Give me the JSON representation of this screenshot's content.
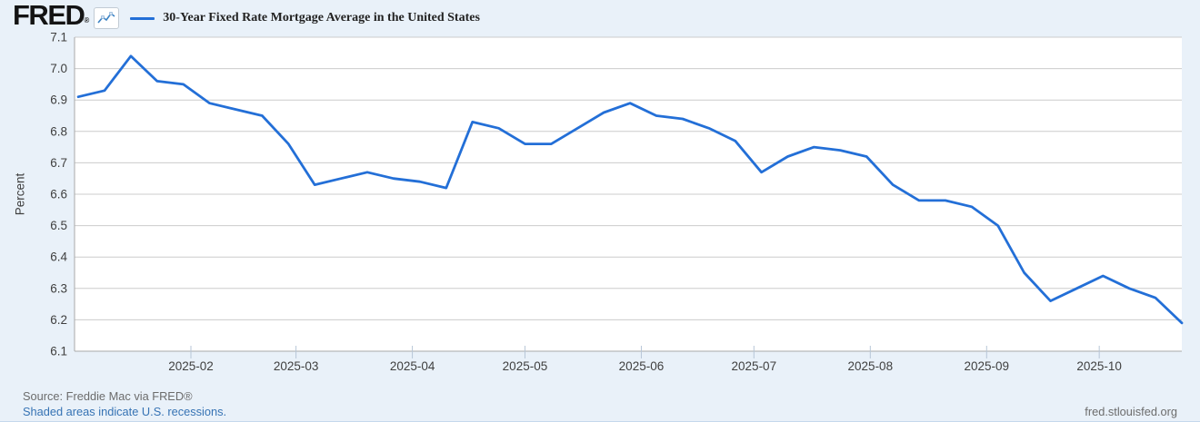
{
  "header": {
    "logo_text": "FRED",
    "registered_mark": "®",
    "legend_label": "30-Year Fixed Rate Mortgage Average in the United States"
  },
  "y_axis": {
    "title": "Percent"
  },
  "footer": {
    "source": "Source: Freddie Mac via FRED®",
    "recession_note": "Shaded areas indicate U.S. recessions.",
    "site": "fred.stlouisfed.org"
  },
  "colors": {
    "line": "#236FD7",
    "background": "#e9f1f9",
    "plot_background": "#ffffff",
    "gridline": "#cccccc",
    "axis_border": "#a9a9a9",
    "tick_mark": "#b7c6d7",
    "tick_label": "#404040",
    "link": "#3673b4",
    "source_text": "#6c6c6c"
  },
  "chart_data": {
    "type": "line",
    "title": "30-Year Fixed Rate Mortgage Average in the United States",
    "xlabel": "",
    "ylabel": "Percent",
    "unit": "Percent",
    "ylim": [
      6.1,
      7.1
    ],
    "y_tick_step": 0.1,
    "y_tick_labels": [
      "6.1",
      "6.2",
      "6.3",
      "6.4",
      "6.5",
      "6.6",
      "6.7",
      "6.8",
      "6.9",
      "7.0",
      "7.1"
    ],
    "x_domain": [
      "2025-01-01",
      "2025-10-23"
    ],
    "x_tick_dates": [
      "2025-02-01",
      "2025-03-01",
      "2025-04-01",
      "2025-05-01",
      "2025-06-01",
      "2025-07-01",
      "2025-08-01",
      "2025-09-01",
      "2025-10-01"
    ],
    "x_tick_labels": [
      "2025-02",
      "2025-03",
      "2025-04",
      "2025-05",
      "2025-06",
      "2025-07",
      "2025-08",
      "2025-09",
      "2025-10"
    ],
    "grid": "horizontal",
    "legend_position": "top",
    "frequency": "weekly",
    "series": [
      {
        "name": "30-Year Fixed Rate Mortgage Average in the United States",
        "dates": [
          "2025-01-02",
          "2025-01-09",
          "2025-01-16",
          "2025-01-23",
          "2025-01-30",
          "2025-02-06",
          "2025-02-13",
          "2025-02-20",
          "2025-02-27",
          "2025-03-06",
          "2025-03-13",
          "2025-03-20",
          "2025-03-27",
          "2025-04-03",
          "2025-04-10",
          "2025-04-17",
          "2025-04-24",
          "2025-05-01",
          "2025-05-08",
          "2025-05-15",
          "2025-05-22",
          "2025-05-29",
          "2025-06-05",
          "2025-06-12",
          "2025-06-19",
          "2025-06-26",
          "2025-07-03",
          "2025-07-10",
          "2025-07-17",
          "2025-07-24",
          "2025-07-31",
          "2025-08-07",
          "2025-08-14",
          "2025-08-21",
          "2025-08-28",
          "2025-09-04",
          "2025-09-11",
          "2025-09-18",
          "2025-09-25",
          "2025-10-02",
          "2025-10-09",
          "2025-10-16",
          "2025-10-23"
        ],
        "values": [
          6.91,
          6.93,
          7.04,
          6.96,
          6.95,
          6.89,
          6.87,
          6.85,
          6.76,
          6.63,
          6.65,
          6.67,
          6.65,
          6.64,
          6.62,
          6.83,
          6.81,
          6.76,
          6.76,
          6.81,
          6.86,
          6.89,
          6.85,
          6.84,
          6.81,
          6.77,
          6.67,
          6.72,
          6.75,
          6.74,
          6.72,
          6.63,
          6.58,
          6.58,
          6.56,
          6.5,
          6.35,
          6.26,
          6.3,
          6.34,
          6.3,
          6.27,
          6.19
        ]
      }
    ]
  }
}
